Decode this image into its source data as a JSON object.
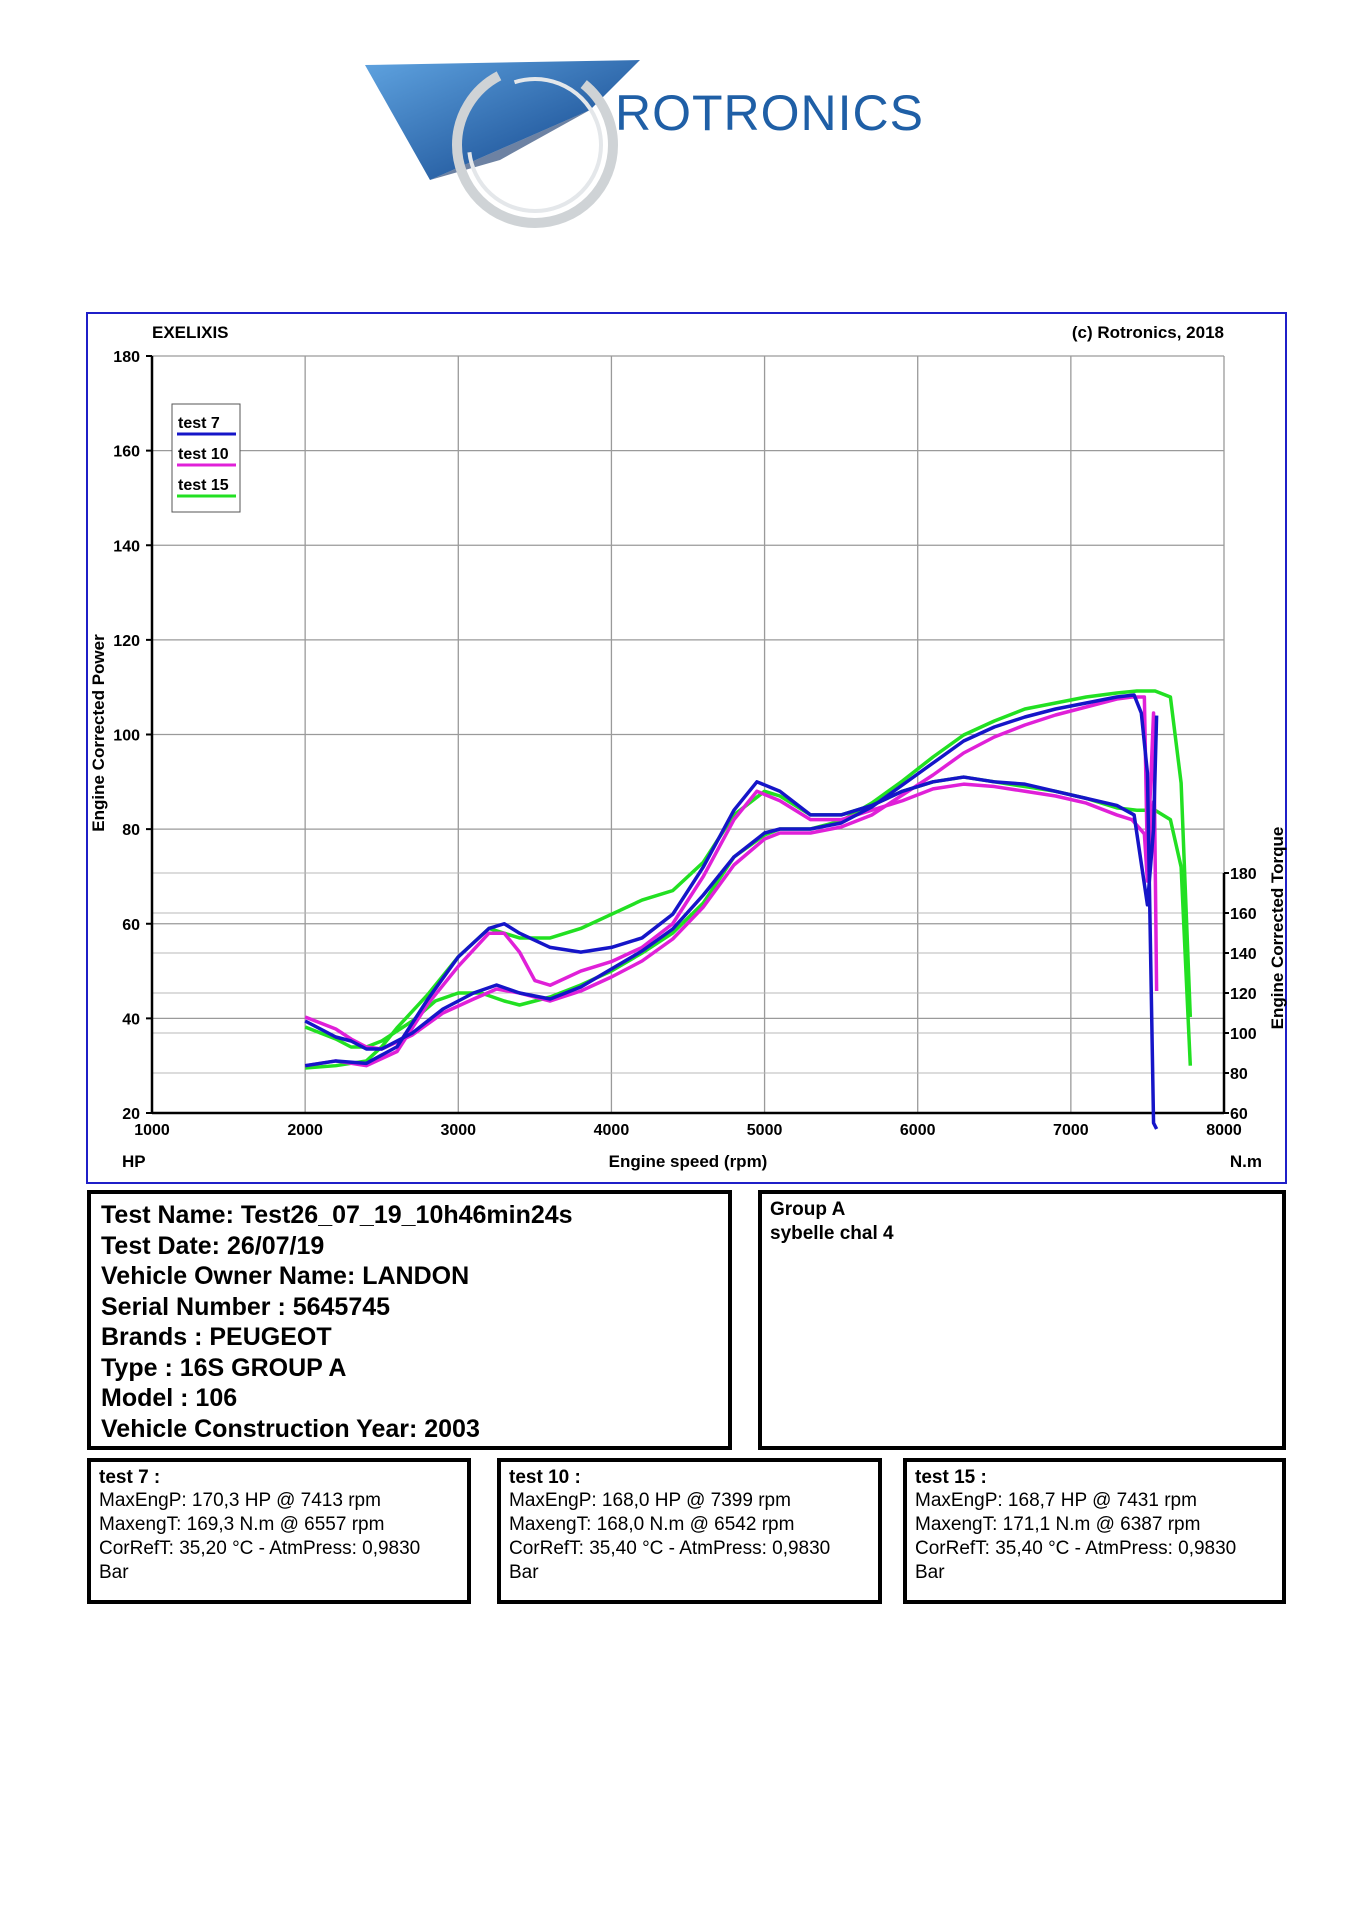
{
  "logo": {
    "text": "ROTRONICS",
    "accent": "#1f5fa6"
  },
  "header": {
    "left_label": "EXELIXIS",
    "right_label": "(c) Rotronics, 2018"
  },
  "chart_data": {
    "type": "line",
    "xlabel": "Engine speed (rpm)",
    "ylabel_left": "Engine Corrected Power",
    "ylabel_right": "Engine Corrected Torque",
    "x_unit_label": "HP",
    "y2_unit_label": "N.m",
    "xlim": [
      1000,
      8000
    ],
    "ylim_left": [
      20,
      180
    ],
    "ylim_right": [
      60,
      180
    ],
    "x_ticks": [
      1000,
      2000,
      3000,
      4000,
      5000,
      6000,
      7000,
      8000
    ],
    "y_ticks_left": [
      20,
      40,
      60,
      80,
      100,
      120,
      140,
      160,
      180
    ],
    "y_ticks_right": [
      60,
      80,
      100,
      120,
      140,
      160,
      180
    ],
    "grid": true,
    "legend_position": "top-left",
    "series": [
      {
        "name": "test 7",
        "color": "#1515c8",
        "power": {
          "x": [
            2000,
            2200,
            2400,
            2600,
            2800,
            3000,
            3200,
            3300,
            3400,
            3600,
            3800,
            4000,
            4200,
            4400,
            4600,
            4800,
            4950,
            5100,
            5300,
            5500,
            5700,
            5900,
            6100,
            6300,
            6500,
            6700,
            6900,
            7100,
            7300,
            7413,
            7500,
            7540,
            7560
          ],
          "y": [
            30,
            31,
            30.5,
            34,
            44,
            53,
            59,
            60,
            58,
            55,
            54,
            55,
            57,
            62,
            72,
            84,
            90,
            88,
            83,
            83,
            85,
            88,
            90,
            91,
            90,
            89.5,
            88,
            86.5,
            85,
            83,
            64,
            80,
            104
          ]
        },
        "torque": {
          "x": [
            2000,
            2200,
            2300,
            2400,
            2500,
            2700,
            2900,
            3100,
            3250,
            3400,
            3600,
            3800,
            4000,
            4200,
            4400,
            4600,
            4800,
            5000,
            5100,
            5300,
            5500,
            5700,
            5900,
            6100,
            6300,
            6500,
            6700,
            6900,
            7100,
            7300,
            7413,
            7460,
            7500,
            7540,
            7560
          ],
          "y": [
            106,
            98,
            96,
            92,
            92,
            100,
            112,
            120,
            124,
            120,
            117,
            123,
            132,
            141,
            152,
            169,
            188,
            200,
            202,
            202,
            205,
            213,
            224,
            235,
            246,
            253,
            258,
            262,
            265,
            268,
            269,
            260,
            230,
            55,
            52
          ]
        }
      },
      {
        "name": "test 10",
        "color": "#e020d8",
        "power": {
          "x": [
            2000,
            2200,
            2400,
            2600,
            2800,
            3000,
            3200,
            3300,
            3400,
            3500,
            3600,
            3800,
            4000,
            4200,
            4400,
            4600,
            4800,
            4950,
            5100,
            5300,
            5500,
            5700,
            5900,
            6100,
            6300,
            6500,
            6700,
            6900,
            7100,
            7300,
            7399,
            7480,
            7500,
            7540
          ],
          "y": [
            30,
            31,
            30,
            33,
            43,
            51,
            58,
            58,
            54,
            48,
            47,
            50,
            52,
            55,
            60,
            70,
            82,
            88,
            86,
            82,
            82,
            84,
            86,
            88.5,
            89.5,
            89,
            88,
            87,
            85.5,
            83,
            82,
            79,
            69,
            86
          ]
        },
        "torque": {
          "x": [
            2000,
            2200,
            2300,
            2400,
            2500,
            2700,
            2900,
            3100,
            3250,
            3400,
            3600,
            3800,
            4000,
            4200,
            4400,
            4600,
            4800,
            5000,
            5100,
            5300,
            5500,
            5700,
            5900,
            6100,
            6300,
            6500,
            6700,
            6900,
            7100,
            7300,
            7399,
            7480,
            7500,
            7540,
            7560
          ],
          "y": [
            108,
            102,
            97,
            93,
            92,
            99,
            110,
            117,
            122,
            120,
            116,
            121,
            128,
            136,
            147,
            163,
            184,
            197,
            200,
            200,
            203,
            209,
            219,
            229,
            240,
            248,
            254,
            259,
            263,
            267,
            268,
            268,
            185,
            260,
            121
          ]
        }
      },
      {
        "name": "test 15",
        "color": "#22e022",
        "power": {
          "x": [
            2000,
            2200,
            2400,
            2500,
            2600,
            2800,
            3000,
            3200,
            3400,
            3600,
            3800,
            4000,
            4200,
            4400,
            4600,
            4800,
            5000,
            5100,
            5300,
            5500,
            5700,
            5900,
            6100,
            6300,
            6500,
            6700,
            6900,
            7100,
            7300,
            7431,
            7550,
            7650,
            7720,
            7780
          ],
          "y": [
            29.5,
            30,
            31,
            34,
            38,
            45,
            53,
            59,
            57,
            57,
            59,
            62,
            65,
            67,
            73,
            83,
            88,
            87,
            83,
            83,
            85,
            88,
            90,
            91,
            90,
            89,
            88,
            86.5,
            84.5,
            84,
            84,
            82,
            72,
            30
          ]
        },
        "torque": {
          "x": [
            2000,
            2200,
            2300,
            2400,
            2500,
            2700,
            2850,
            3000,
            3150,
            3300,
            3400,
            3600,
            3800,
            4000,
            4200,
            4400,
            4600,
            4800,
            5000,
            5100,
            5300,
            5500,
            5700,
            5900,
            6100,
            6300,
            6500,
            6700,
            6900,
            7100,
            7300,
            7431,
            7550,
            7650,
            7720,
            7780
          ],
          "y": [
            103,
            97,
            93,
            93,
            96,
            106,
            116,
            120,
            120,
            116,
            114,
            118,
            124,
            131,
            140,
            150,
            165,
            188,
            199,
            202,
            202,
            206,
            215,
            226,
            238,
            249,
            256,
            262,
            265,
            268,
            270,
            271,
            271,
            268,
            225,
            108
          ]
        }
      }
    ]
  },
  "info": {
    "test_name": "Test Name: Test26_07_19_10h46min24s",
    "test_date": "Test Date: 26/07/19",
    "owner": "Vehicle Owner Name: LANDON",
    "serial": "Serial Number  : 5645745",
    "brands": "Brands  : PEUGEOT",
    "type": "Type  : 16S GROUP A",
    "model": "Model  : 106",
    "year": "Vehicle Construction Year: 2003"
  },
  "group": {
    "line1": "Group A",
    "line2": "sybelle chal 4"
  },
  "tests": [
    {
      "name": "test 7 :",
      "maxp": "MaxEngP: 170,3 HP @ 7413 rpm",
      "maxt": "MaxengT: 169,3 N.m @ 6557 rpm",
      "corref": "CorRefT: 35,20 °C - AtmPress: 0,9830",
      "unit": "Bar"
    },
    {
      "name": "test 10 :",
      "maxp": "MaxEngP: 168,0 HP @ 7399 rpm",
      "maxt": "MaxengT: 168,0 N.m @ 6542 rpm",
      "corref": "CorRefT: 35,40 °C - AtmPress: 0,9830",
      "unit": "Bar"
    },
    {
      "name": "test 15 :",
      "maxp": "MaxEngP: 168,7 HP @ 7431 rpm",
      "maxt": "MaxengT: 171,1 N.m @ 6387 rpm",
      "corref": "CorRefT: 35,40 °C - AtmPress: 0,9830",
      "unit": "Bar"
    }
  ]
}
